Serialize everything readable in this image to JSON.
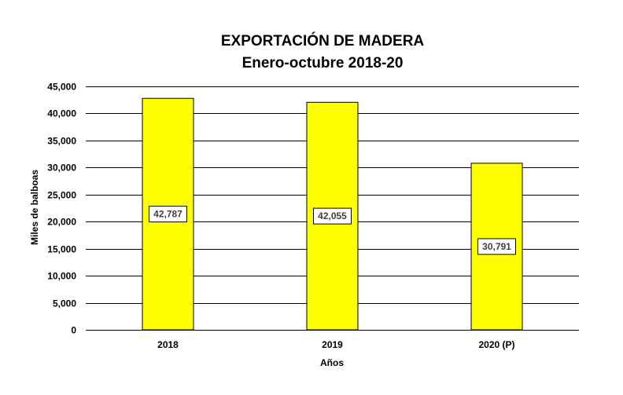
{
  "chart_data": {
    "type": "bar",
    "title": "EXPORTACIÓN  DE MADERA",
    "subtitle": "Enero-octubre  2018-20",
    "categories": [
      "2018",
      "2019",
      "2020 (P)"
    ],
    "values": [
      42787,
      42055,
      30791
    ],
    "value_labels": [
      "42,787",
      "42,055",
      "30,791"
    ],
    "xlabel": "Años",
    "ylabel": "Miles de balboas",
    "ylim": [
      0,
      45000
    ],
    "yticks": [
      0,
      5000,
      10000,
      15000,
      20000,
      25000,
      30000,
      35000,
      40000,
      45000
    ],
    "ytick_labels": [
      "0",
      "5,000",
      "10,000",
      "15,000",
      "20,000",
      "25,000",
      "30,000",
      "35,000",
      "40,000",
      "45,000"
    ],
    "grid": true,
    "bar_color": "#FFFF00",
    "legend": "none"
  }
}
